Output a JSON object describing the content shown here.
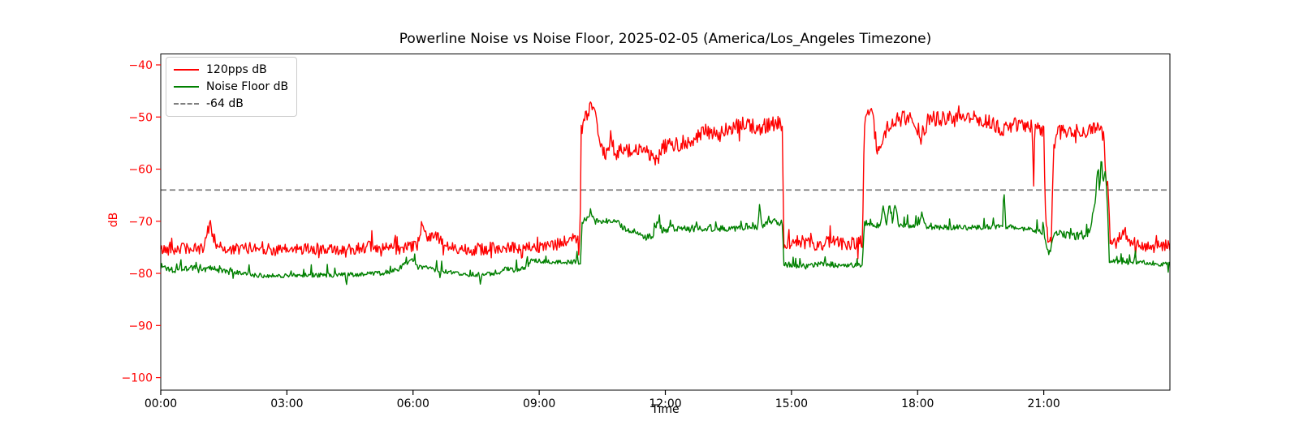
{
  "chart_data": {
    "type": "line",
    "title": "Powerline Noise vs Noise Floor, 2025-02-05 (America/Los_Angeles Timezone)",
    "xlabel": "Time",
    "ylabel": "dB",
    "grid": false,
    "legend_position": "upper-left",
    "x_range_hours": [
      0,
      24
    ],
    "y_range": [
      -102.4,
      -37.9
    ],
    "x_tick_hours": [
      0,
      3,
      6,
      9,
      12,
      15,
      18,
      21
    ],
    "x_tick_labels": [
      "00:00",
      "03:00",
      "06:00",
      "09:00",
      "12:00",
      "15:00",
      "18:00",
      "21:00"
    ],
    "y_tick_values": [
      -40,
      -50,
      -60,
      -70,
      -80,
      -90,
      -100
    ],
    "y_tick_labels": [
      "−40",
      "−50",
      "−60",
      "−70",
      "−80",
      "−90",
      "−100"
    ],
    "axis_colors": {
      "y_ticks": "#ff0000",
      "x_ticks": "#000000",
      "spines": "#000000"
    },
    "reference_line": {
      "label": "-64 dB",
      "value": -64,
      "color": "#808080",
      "style": "dashed"
    },
    "series": [
      {
        "name": "120pps dB",
        "color": "#ff0000",
        "noise_seed": 42,
        "blip": {
          "prob": 0.04,
          "amp": 2.2,
          "pos_frac": 0.5
        },
        "noise_amp": [
          [
            0,
            1.1
          ],
          [
            9.95,
            1.2
          ],
          [
            10.0,
            1.5
          ],
          [
            14.78,
            1.5
          ],
          [
            14.82,
            1.3
          ],
          [
            16.69,
            1.3
          ],
          [
            16.73,
            1.5
          ],
          [
            22.4,
            1.4
          ],
          [
            22.62,
            1.2
          ],
          [
            24,
            1.1
          ]
        ],
        "keypoints": [
          [
            0.0,
            -75.5
          ],
          [
            0.5,
            -75.2
          ],
          [
            1.0,
            -75.4
          ],
          [
            1.08,
            -72.8
          ],
          [
            1.17,
            -70.4
          ],
          [
            1.28,
            -74.3
          ],
          [
            1.6,
            -75.6
          ],
          [
            2.2,
            -75.0
          ],
          [
            2.8,
            -75.6
          ],
          [
            3.5,
            -75.2
          ],
          [
            4.2,
            -75.6
          ],
          [
            4.9,
            -74.9
          ],
          [
            5.5,
            -75.4
          ],
          [
            6.1,
            -74.9
          ],
          [
            6.21,
            -70.6
          ],
          [
            6.32,
            -72.6
          ],
          [
            6.55,
            -72.8
          ],
          [
            6.75,
            -74.8
          ],
          [
            7.4,
            -75.4
          ],
          [
            8.2,
            -75.0
          ],
          [
            9.0,
            -75.2
          ],
          [
            9.55,
            -74.2
          ],
          [
            9.8,
            -73.3
          ],
          [
            9.97,
            -73.8
          ],
          [
            10.0,
            -52.5
          ],
          [
            10.1,
            -50.2
          ],
          [
            10.26,
            -48.0
          ],
          [
            10.38,
            -51.0
          ],
          [
            10.5,
            -56.8
          ],
          [
            10.62,
            -57.3
          ],
          [
            10.7,
            -54.0
          ],
          [
            10.8,
            -57.0
          ],
          [
            11.0,
            -56.3
          ],
          [
            11.2,
            -56.8
          ],
          [
            11.5,
            -55.8
          ],
          [
            11.8,
            -58.8
          ],
          [
            11.95,
            -55.6
          ],
          [
            12.3,
            -55.2
          ],
          [
            12.7,
            -54.2
          ],
          [
            13.0,
            -52.6
          ],
          [
            13.25,
            -53.8
          ],
          [
            13.55,
            -52.0
          ],
          [
            13.9,
            -51.4
          ],
          [
            14.2,
            -52.2
          ],
          [
            14.5,
            -51.2
          ],
          [
            14.78,
            -51.4
          ],
          [
            14.82,
            -74.2
          ],
          [
            15.2,
            -73.8
          ],
          [
            15.6,
            -74.6
          ],
          [
            16.0,
            -73.9
          ],
          [
            16.35,
            -74.5
          ],
          [
            16.69,
            -73.9
          ],
          [
            16.73,
            -51.8
          ],
          [
            16.82,
            -48.8
          ],
          [
            16.9,
            -47.2
          ],
          [
            16.98,
            -53.0
          ],
          [
            17.04,
            -56.6
          ],
          [
            17.15,
            -54.2
          ],
          [
            17.35,
            -51.2
          ],
          [
            17.6,
            -50.4
          ],
          [
            17.9,
            -50.0
          ],
          [
            18.08,
            -53.8
          ],
          [
            18.25,
            -50.6
          ],
          [
            18.6,
            -49.9
          ],
          [
            19.0,
            -50.6
          ],
          [
            19.4,
            -50.2
          ],
          [
            19.8,
            -51.0
          ],
          [
            20.0,
            -52.8
          ],
          [
            20.2,
            -51.4
          ],
          [
            20.5,
            -51.6
          ],
          [
            20.73,
            -51.8
          ],
          [
            20.76,
            -63.8
          ],
          [
            20.79,
            -51.9
          ],
          [
            21.0,
            -52.4
          ],
          [
            21.03,
            -65.0
          ],
          [
            21.07,
            -72.6
          ],
          [
            21.18,
            -72.9
          ],
          [
            21.24,
            -56.0
          ],
          [
            21.35,
            -53.0
          ],
          [
            21.7,
            -52.6
          ],
          [
            22.0,
            -52.8
          ],
          [
            22.3,
            -51.9
          ],
          [
            22.43,
            -53.6
          ],
          [
            22.48,
            -61.8
          ],
          [
            22.53,
            -62.4
          ],
          [
            22.58,
            -73.2
          ],
          [
            22.75,
            -74.3
          ],
          [
            22.88,
            -71.6
          ],
          [
            23.05,
            -73.8
          ],
          [
            23.4,
            -75.2
          ],
          [
            23.7,
            -74.8
          ],
          [
            24.0,
            -74.6
          ]
        ]
      },
      {
        "name": "Noise Floor dB",
        "color": "#008000",
        "noise_seed": 1337,
        "blip": {
          "prob": 0.05,
          "amp": 2.0,
          "pos_frac": 0.85
        },
        "noise_amp": [
          [
            0,
            0.9
          ],
          [
            2.2,
            0.45
          ],
          [
            9.9,
            0.45
          ],
          [
            10.02,
            0.7
          ],
          [
            14.78,
            0.7
          ],
          [
            14.82,
            0.55
          ],
          [
            16.73,
            0.55
          ],
          [
            20.9,
            0.5
          ],
          [
            22.1,
            0.9
          ],
          [
            22.56,
            0.45
          ],
          [
            24,
            0.45
          ]
        ],
        "keypoints": [
          [
            0.0,
            -78.6
          ],
          [
            0.25,
            -79.2
          ],
          [
            0.6,
            -78.8
          ],
          [
            0.9,
            -79.4
          ],
          [
            1.2,
            -79.0
          ],
          [
            1.5,
            -79.6
          ],
          [
            1.9,
            -80.0
          ],
          [
            2.3,
            -80.4
          ],
          [
            3.2,
            -80.4
          ],
          [
            4.0,
            -80.3
          ],
          [
            4.38,
            -80.3
          ],
          [
            4.42,
            -82.3
          ],
          [
            4.46,
            -80.3
          ],
          [
            5.2,
            -80.0
          ],
          [
            5.6,
            -79.4
          ],
          [
            6.01,
            -77.2
          ],
          [
            6.1,
            -78.8
          ],
          [
            6.4,
            -79.0
          ],
          [
            6.7,
            -79.6
          ],
          [
            7.1,
            -80.2
          ],
          [
            7.56,
            -80.2
          ],
          [
            7.6,
            -82.0
          ],
          [
            7.64,
            -80.2
          ],
          [
            8.05,
            -80.1
          ],
          [
            8.15,
            -79.1
          ],
          [
            8.45,
            -79.4
          ],
          [
            8.7,
            -79.0
          ],
          [
            8.8,
            -77.6
          ],
          [
            9.2,
            -77.6
          ],
          [
            9.55,
            -77.9
          ],
          [
            9.98,
            -77.7
          ],
          [
            10.02,
            -70.6
          ],
          [
            10.12,
            -69.6
          ],
          [
            10.22,
            -68.2
          ],
          [
            10.32,
            -69.9
          ],
          [
            10.6,
            -69.7
          ],
          [
            10.9,
            -70.6
          ],
          [
            11.2,
            -71.9
          ],
          [
            11.45,
            -72.9
          ],
          [
            11.7,
            -73.1
          ],
          [
            11.83,
            -69.9
          ],
          [
            11.92,
            -71.9
          ],
          [
            12.2,
            -71.2
          ],
          [
            12.6,
            -71.6
          ],
          [
            13.0,
            -71.2
          ],
          [
            13.5,
            -71.4
          ],
          [
            13.95,
            -71.0
          ],
          [
            14.2,
            -70.9
          ],
          [
            14.25,
            -67.4
          ],
          [
            14.3,
            -70.6
          ],
          [
            14.55,
            -70.1
          ],
          [
            14.78,
            -70.2
          ],
          [
            14.82,
            -78.2
          ],
          [
            15.3,
            -78.7
          ],
          [
            15.8,
            -78.2
          ],
          [
            16.25,
            -78.6
          ],
          [
            16.69,
            -78.3
          ],
          [
            16.73,
            -70.4
          ],
          [
            16.95,
            -70.7
          ],
          [
            17.1,
            -70.9
          ],
          [
            17.18,
            -67.0
          ],
          [
            17.26,
            -70.5
          ],
          [
            17.33,
            -66.9
          ],
          [
            17.4,
            -70.6
          ],
          [
            17.46,
            -66.6
          ],
          [
            17.55,
            -70.8
          ],
          [
            18.0,
            -71.1
          ],
          [
            18.1,
            -68.6
          ],
          [
            18.2,
            -71.3
          ],
          [
            18.7,
            -71.1
          ],
          [
            19.2,
            -71.2
          ],
          [
            19.7,
            -71.1
          ],
          [
            20.02,
            -71.0
          ],
          [
            20.06,
            -64.6
          ],
          [
            20.1,
            -71.0
          ],
          [
            20.5,
            -71.4
          ],
          [
            20.8,
            -71.8
          ],
          [
            21.0,
            -72.1
          ],
          [
            21.04,
            -74.2
          ],
          [
            21.1,
            -76.0
          ],
          [
            21.17,
            -75.7
          ],
          [
            21.23,
            -72.4
          ],
          [
            21.4,
            -72.4
          ],
          [
            21.7,
            -72.8
          ],
          [
            22.0,
            -73.1
          ],
          [
            22.1,
            -71.6
          ],
          [
            22.18,
            -68.2
          ],
          [
            22.24,
            -65.2
          ],
          [
            22.29,
            -58.6
          ],
          [
            22.33,
            -64.8
          ],
          [
            22.37,
            -56.3
          ],
          [
            22.41,
            -63.5
          ],
          [
            22.46,
            -60.2
          ],
          [
            22.51,
            -66.0
          ],
          [
            22.56,
            -77.6
          ],
          [
            22.9,
            -78.0
          ],
          [
            23.3,
            -77.7
          ],
          [
            23.7,
            -78.2
          ],
          [
            24.0,
            -78.3
          ]
        ]
      }
    ]
  }
}
